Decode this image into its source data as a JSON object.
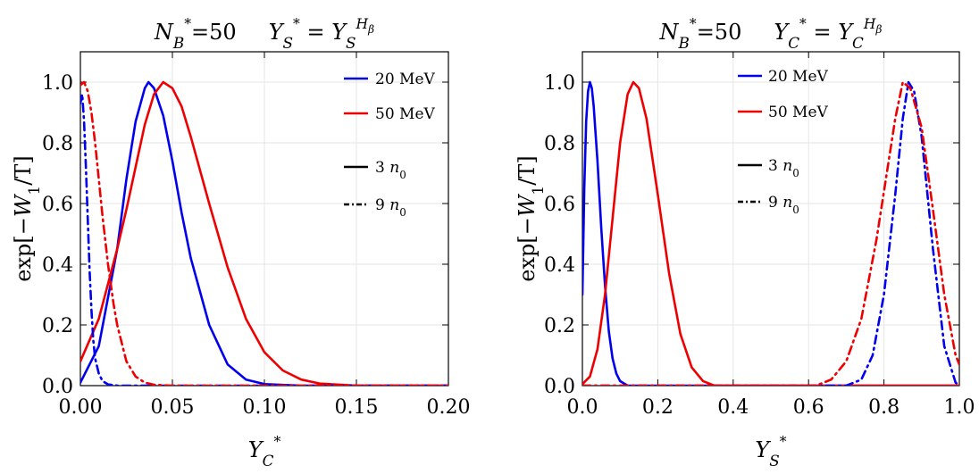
{
  "colors": {
    "series_1": "#0000ee",
    "series_2": "#ee0000",
    "legend_style": "#000000"
  },
  "chart_data": [
    {
      "type": "line",
      "title": {
        "n": "N",
        "n_sub": "B",
        "n_sup": "*",
        "n_value": "=50",
        "y": "Y",
        "y_sub": "S",
        "y_sup": "*",
        "eq": "=",
        "y2": "Y",
        "y2_sub": "S",
        "y2_sup": "H",
        "y2_sup_sub": "β"
      },
      "xlabel": {
        "base": "Y",
        "sub": "C",
        "sup": "*"
      },
      "ylabel": {
        "pre": "exp[−",
        "w": "W",
        "w_sub": "1",
        "post": "/T]"
      },
      "xlim": [
        0,
        0.2
      ],
      "ylim": [
        0,
        1.1
      ],
      "xticks": [
        0.0,
        0.05,
        0.1,
        0.15,
        0.2
      ],
      "xtick_labels": [
        "0.00",
        "0.05",
        "0.10",
        "0.15",
        "0.20"
      ],
      "yticks": [
        0.0,
        0.2,
        0.4,
        0.6,
        0.8,
        1.0
      ],
      "ytick_labels": [
        "0.0",
        "0.2",
        "0.4",
        "0.6",
        "0.8",
        "1.0"
      ],
      "grid": true,
      "legend_position": "top-right",
      "legend": [
        {
          "label": "20 MeV",
          "kind": "color",
          "color": "#0000ee"
        },
        {
          "label": "50 MeV",
          "kind": "color",
          "color": "#ee0000"
        },
        {
          "label": "3",
          "label_sym": "n",
          "label_sub": "0",
          "kind": "style",
          "style": "solid"
        },
        {
          "label": "9",
          "label_sym": "n",
          "label_sub": "0",
          "kind": "style",
          "style": "dashdot"
        }
      ],
      "series": [
        {
          "temperature": "20 MeV",
          "density": "3 n0",
          "color": "#0000ee",
          "style": "solid",
          "x": [
            0.0,
            0.01,
            0.02,
            0.025,
            0.03,
            0.035,
            0.037,
            0.04,
            0.045,
            0.05,
            0.055,
            0.06,
            0.07,
            0.08,
            0.09,
            0.1,
            0.12,
            0.2
          ],
          "y": [
            0.01,
            0.13,
            0.45,
            0.68,
            0.87,
            0.98,
            1.0,
            0.98,
            0.89,
            0.74,
            0.57,
            0.42,
            0.2,
            0.07,
            0.02,
            0.005,
            0.0,
            0.0
          ]
        },
        {
          "temperature": "50 MeV",
          "density": "3 n0",
          "color": "#ee0000",
          "style": "solid",
          "x": [
            0.0,
            0.01,
            0.02,
            0.025,
            0.03,
            0.035,
            0.04,
            0.045,
            0.05,
            0.055,
            0.06,
            0.07,
            0.08,
            0.09,
            0.1,
            0.11,
            0.12,
            0.13,
            0.15,
            0.2
          ],
          "y": [
            0.08,
            0.22,
            0.45,
            0.58,
            0.72,
            0.86,
            0.96,
            1.0,
            0.98,
            0.92,
            0.82,
            0.6,
            0.39,
            0.22,
            0.11,
            0.05,
            0.02,
            0.007,
            0.0,
            0.0
          ]
        },
        {
          "temperature": "20 MeV",
          "density": "9 n0",
          "color": "#0000ee",
          "style": "dashdot",
          "x": [
            0.0,
            0.001,
            0.002,
            0.003,
            0.004,
            0.005,
            0.006,
            0.007,
            0.008,
            0.01,
            0.012,
            0.015,
            0.02,
            0.2
          ],
          "y": [
            0.93,
            0.96,
            0.87,
            0.72,
            0.55,
            0.38,
            0.25,
            0.15,
            0.09,
            0.04,
            0.015,
            0.004,
            0.0,
            0.0
          ]
        },
        {
          "temperature": "50 MeV",
          "density": "9 n0",
          "color": "#ee0000",
          "style": "dashdot",
          "x": [
            0.0,
            0.002,
            0.004,
            0.006,
            0.008,
            0.01,
            0.012,
            0.015,
            0.018,
            0.02,
            0.025,
            0.03,
            0.035,
            0.04,
            0.05,
            0.06,
            0.2
          ],
          "y": [
            0.99,
            1.0,
            0.97,
            0.9,
            0.8,
            0.68,
            0.56,
            0.4,
            0.27,
            0.2,
            0.08,
            0.03,
            0.01,
            0.003,
            0.0,
            0.0,
            0.0
          ]
        }
      ]
    },
    {
      "type": "line",
      "title": {
        "n": "N",
        "n_sub": "B",
        "n_sup": "*",
        "n_value": "=50",
        "y": "Y",
        "y_sub": "C",
        "y_sup": "*",
        "eq": "=",
        "y2": "Y",
        "y2_sub": "C",
        "y2_sup": "H",
        "y2_sup_sub": "β"
      },
      "xlabel": {
        "base": "Y",
        "sub": "S",
        "sup": "*"
      },
      "ylabel": {
        "pre": "exp[−",
        "w": "W",
        "w_sub": "1",
        "post": "/T]"
      },
      "xlim": [
        0,
        1.0
      ],
      "ylim": [
        0,
        1.1
      ],
      "xticks": [
        0.0,
        0.2,
        0.4,
        0.6,
        0.8,
        1.0
      ],
      "xtick_labels": [
        "0.0",
        "0.2",
        "0.4",
        "0.6",
        "0.8",
        "1.0"
      ],
      "yticks": [
        0.0,
        0.2,
        0.4,
        0.6,
        0.8,
        1.0
      ],
      "ytick_labels": [
        "0.0",
        "0.2",
        "0.4",
        "0.6",
        "0.8",
        "1.0"
      ],
      "grid": true,
      "legend_position": "top-center",
      "legend": [
        {
          "label": "20 MeV",
          "kind": "color",
          "color": "#0000ee"
        },
        {
          "label": "50 MeV",
          "kind": "color",
          "color": "#ee0000"
        },
        {
          "label": "3",
          "label_sym": "n",
          "label_sub": "0",
          "kind": "style",
          "style": "solid"
        },
        {
          "label": "9",
          "label_sym": "n",
          "label_sub": "0",
          "kind": "style",
          "style": "dashdot"
        }
      ],
      "series": [
        {
          "temperature": "20 MeV",
          "density": "3 n0",
          "color": "#0000ee",
          "style": "solid",
          "x": [
            0.0,
            0.005,
            0.01,
            0.015,
            0.02,
            0.025,
            0.03,
            0.04,
            0.05,
            0.06,
            0.07,
            0.08,
            0.09,
            0.1,
            0.12,
            1.0
          ],
          "y": [
            0.3,
            0.65,
            0.87,
            0.97,
            1.0,
            0.98,
            0.92,
            0.74,
            0.52,
            0.33,
            0.18,
            0.09,
            0.04,
            0.015,
            0.0,
            0.0
          ]
        },
        {
          "temperature": "50 MeV",
          "density": "3 n0",
          "color": "#ee0000",
          "style": "solid",
          "x": [
            0.0,
            0.02,
            0.04,
            0.06,
            0.08,
            0.1,
            0.12,
            0.135,
            0.15,
            0.17,
            0.2,
            0.23,
            0.26,
            0.29,
            0.32,
            0.35,
            1.0
          ],
          "y": [
            0.005,
            0.03,
            0.12,
            0.3,
            0.55,
            0.8,
            0.96,
            1.0,
            0.98,
            0.88,
            0.63,
            0.37,
            0.17,
            0.06,
            0.015,
            0.0,
            0.0
          ]
        },
        {
          "temperature": "20 MeV",
          "density": "9 n0",
          "color": "#0000ee",
          "style": "dashdot",
          "x": [
            0.0,
            0.7,
            0.74,
            0.77,
            0.8,
            0.83,
            0.85,
            0.865,
            0.88,
            0.9,
            0.93,
            0.96,
            0.99,
            1.0
          ],
          "y": [
            0.0,
            0.0,
            0.02,
            0.1,
            0.3,
            0.63,
            0.88,
            1.0,
            0.97,
            0.82,
            0.45,
            0.13,
            0.01,
            0.0
          ]
        },
        {
          "temperature": "50 MeV",
          "density": "9 n0",
          "color": "#ee0000",
          "style": "dashdot",
          "x": [
            0.0,
            0.62,
            0.66,
            0.7,
            0.74,
            0.78,
            0.81,
            0.83,
            0.85,
            0.87,
            0.9,
            0.93,
            0.96,
            0.99,
            1.0
          ],
          "y": [
            0.0,
            0.0,
            0.02,
            0.08,
            0.22,
            0.48,
            0.72,
            0.88,
            1.0,
            0.98,
            0.85,
            0.58,
            0.3,
            0.1,
            0.07
          ]
        }
      ]
    }
  ]
}
